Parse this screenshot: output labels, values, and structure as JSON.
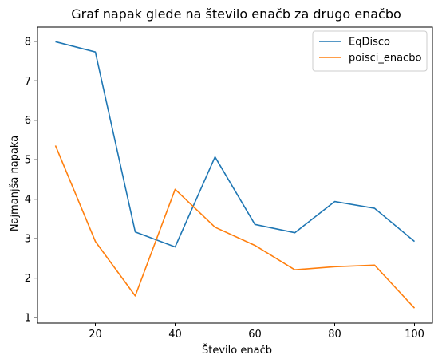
{
  "chart_data": {
    "type": "line",
    "title": "Graf napak glede na število enačb za drugo enačbo",
    "xlabel": "Število enačb",
    "ylabel": "Najmanjša napaka",
    "x": [
      10,
      20,
      30,
      40,
      50,
      60,
      70,
      80,
      90,
      100
    ],
    "xlim": [
      5.5,
      104.5
    ],
    "ylim": [
      0.86,
      8.36
    ],
    "xticks": [
      20,
      40,
      60,
      80,
      100
    ],
    "yticks": [
      1,
      2,
      3,
      4,
      5,
      6,
      7,
      8
    ],
    "grid": false,
    "legend_position": "top-right",
    "series": [
      {
        "name": "EqDisco",
        "color": "#1f77b4",
        "values": [
          7.99,
          7.73,
          3.17,
          2.79,
          5.07,
          3.36,
          3.15,
          3.94,
          3.77,
          2.93
        ]
      },
      {
        "name": "poisci_enacbo",
        "color": "#ff7f0e",
        "values": [
          5.36,
          2.93,
          1.55,
          4.25,
          3.29,
          2.83,
          2.21,
          2.29,
          2.33,
          1.24
        ]
      }
    ]
  }
}
